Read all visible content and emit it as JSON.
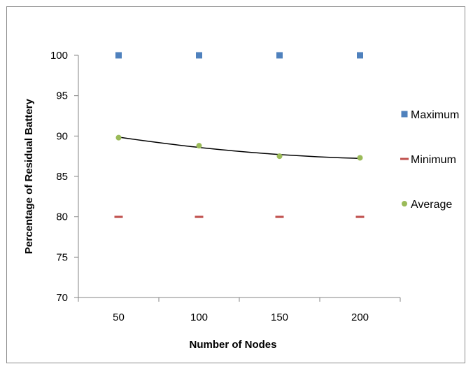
{
  "chart_data": {
    "type": "scatter",
    "xlabel": "Number of Nodes",
    "ylabel": "Percentage of Residual Battery",
    "x": [
      50,
      100,
      150,
      200
    ],
    "x_ticks": [
      "50",
      "100",
      "150",
      "200"
    ],
    "y_ticks": [
      "70",
      "75",
      "80",
      "85",
      "90",
      "95",
      "100"
    ],
    "ylim": [
      70,
      100
    ],
    "grid": false,
    "legend_position": "right",
    "series": [
      {
        "name": "Maximum",
        "values": [
          100,
          100,
          100,
          100
        ],
        "color": "#4f81bd",
        "marker": "square"
      },
      {
        "name": "Minimum",
        "values": [
          80,
          80,
          80,
          80
        ],
        "color": "#c0504d",
        "marker": "dash"
      },
      {
        "name": "Average",
        "values": [
          89.8,
          88.8,
          87.5,
          87.3
        ],
        "color": "#9bbb59",
        "marker": "circle",
        "trendline": true
      }
    ],
    "trendline_color": "#000000"
  }
}
